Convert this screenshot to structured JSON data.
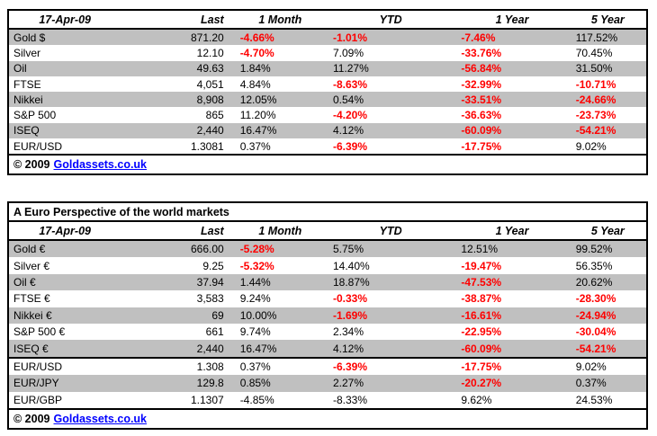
{
  "colors": {
    "negative_red": "#FF0000",
    "row_shade_gray": "#C0C0C0",
    "link_blue": "#0000FF",
    "border_black": "#000000"
  },
  "chart_data": [
    {
      "type": "table",
      "date": "17-Apr-09",
      "columns": [
        "Last",
        "1 Month",
        "YTD",
        "1 Year",
        "5 Year"
      ],
      "rows": [
        {
          "label": "Gold $",
          "last": "871.20",
          "pcts": [
            {
              "t": "-4.66%",
              "red": true
            },
            {
              "t": "-1.01%",
              "red": true
            },
            {
              "t": "-7.46%",
              "red": true
            },
            {
              "t": "117.52%",
              "red": false
            }
          ]
        },
        {
          "label": "Silver",
          "last": "12.10",
          "pcts": [
            {
              "t": "-4.70%",
              "red": true
            },
            {
              "t": "7.09%",
              "red": false
            },
            {
              "t": "-33.76%",
              "red": true
            },
            {
              "t": "70.45%",
              "red": false
            }
          ]
        },
        {
          "label": "Oil",
          "last": "49.63",
          "pcts": [
            {
              "t": "1.84%",
              "red": false
            },
            {
              "t": "11.27%",
              "red": false
            },
            {
              "t": "-56.84%",
              "red": true
            },
            {
              "t": "31.50%",
              "red": false
            }
          ]
        },
        {
          "label": "FTSE",
          "last": "4,051",
          "pcts": [
            {
              "t": "4.84%",
              "red": false
            },
            {
              "t": "-8.63%",
              "red": true
            },
            {
              "t": "-32.99%",
              "red": true
            },
            {
              "t": "-10.71%",
              "red": true
            }
          ]
        },
        {
          "label": "Nikkei",
          "last": "8,908",
          "pcts": [
            {
              "t": "12.05%",
              "red": false
            },
            {
              "t": "0.54%",
              "red": false
            },
            {
              "t": "-33.51%",
              "red": true
            },
            {
              "t": "-24.66%",
              "red": true
            }
          ]
        },
        {
          "label": "S&P 500",
          "last": "865",
          "pcts": [
            {
              "t": "11.20%",
              "red": false
            },
            {
              "t": "-4.20%",
              "red": true
            },
            {
              "t": "-36.63%",
              "red": true
            },
            {
              "t": "-23.73%",
              "red": true
            }
          ]
        },
        {
          "label": "ISEQ",
          "last": "2,440",
          "pcts": [
            {
              "t": "16.47%",
              "red": false
            },
            {
              "t": "4.12%",
              "red": false
            },
            {
              "t": "-60.09%",
              "red": true
            },
            {
              "t": "-54.21%",
              "red": true
            }
          ]
        },
        {
          "label": "EUR/USD",
          "last": "1.3081",
          "pcts": [
            {
              "t": "0.37%",
              "red": false
            },
            {
              "t": "-6.39%",
              "red": true
            },
            {
              "t": "-17.75%",
              "red": true
            },
            {
              "t": "9.02%",
              "red": false
            }
          ]
        }
      ],
      "footer": {
        "copyright": "© 2009",
        "link": "Goldassets.co.uk"
      }
    },
    {
      "type": "table",
      "title": "A Euro Perspective of the world markets",
      "date": "17-Apr-09",
      "columns": [
        "Last",
        "1 Month",
        "YTD",
        "1 Year",
        "5 Year"
      ],
      "divider_before_row": 7,
      "rows": [
        {
          "label": "Gold €",
          "last": "666.00",
          "pcts": [
            {
              "t": "-5.28%",
              "red": true
            },
            {
              "t": "5.75%",
              "red": false
            },
            {
              "t": "12.51%",
              "red": false
            },
            {
              "t": "99.52%",
              "red": false
            }
          ]
        },
        {
          "label": "Silver €",
          "last": "9.25",
          "pcts": [
            {
              "t": "-5.32%",
              "red": true
            },
            {
              "t": "14.40%",
              "red": false
            },
            {
              "t": "-19.47%",
              "red": true
            },
            {
              "t": "56.35%",
              "red": false
            }
          ]
        },
        {
          "label": "Oil €",
          "last": "37.94",
          "pcts": [
            {
              "t": "1.44%",
              "red": false
            },
            {
              "t": "18.87%",
              "red": false
            },
            {
              "t": "-47.53%",
              "red": true
            },
            {
              "t": "20.62%",
              "red": false
            }
          ]
        },
        {
          "label": "FTSE €",
          "last": "3,583",
          "pcts": [
            {
              "t": "9.24%",
              "red": false
            },
            {
              "t": "-0.33%",
              "red": true
            },
            {
              "t": "-38.87%",
              "red": true
            },
            {
              "t": "-28.30%",
              "red": true
            }
          ]
        },
        {
          "label": "Nikkei €",
          "last": "69",
          "pcts": [
            {
              "t": "10.00%",
              "red": false
            },
            {
              "t": "-1.69%",
              "red": true
            },
            {
              "t": "-16.61%",
              "red": true
            },
            {
              "t": "-24.94%",
              "red": true
            }
          ]
        },
        {
          "label": "S&P 500 €",
          "last": "661",
          "pcts": [
            {
              "t": "9.74%",
              "red": false
            },
            {
              "t": "2.34%",
              "red": false
            },
            {
              "t": "-22.95%",
              "red": true
            },
            {
              "t": "-30.04%",
              "red": true
            }
          ]
        },
        {
          "label": "ISEQ €",
          "last": "2,440",
          "pcts": [
            {
              "t": "16.47%",
              "red": false
            },
            {
              "t": "4.12%",
              "red": false
            },
            {
              "t": "-60.09%",
              "red": true
            },
            {
              "t": "-54.21%",
              "red": true
            }
          ]
        },
        {
          "label": "EUR/USD",
          "last": "1.308",
          "pcts": [
            {
              "t": "0.37%",
              "red": false
            },
            {
              "t": "-6.39%",
              "red": true
            },
            {
              "t": "-17.75%",
              "red": true
            },
            {
              "t": "9.02%",
              "red": false
            }
          ]
        },
        {
          "label": "EUR/JPY",
          "last": "129.8",
          "pcts": [
            {
              "t": "0.85%",
              "red": false
            },
            {
              "t": "2.27%",
              "red": false
            },
            {
              "t": "-20.27%",
              "red": true
            },
            {
              "t": "0.37%",
              "red": false
            }
          ]
        },
        {
          "label": "EUR/GBP",
          "last": "1.1307",
          "pcts": [
            {
              "t": "-4.85%",
              "red": false
            },
            {
              "t": "-8.33%",
              "red": false
            },
            {
              "t": "9.62%",
              "red": false
            },
            {
              "t": "24.53%",
              "red": false
            }
          ]
        }
      ],
      "footer": {
        "copyright": "© 2009",
        "link": "Goldassets.co.uk"
      }
    }
  ]
}
